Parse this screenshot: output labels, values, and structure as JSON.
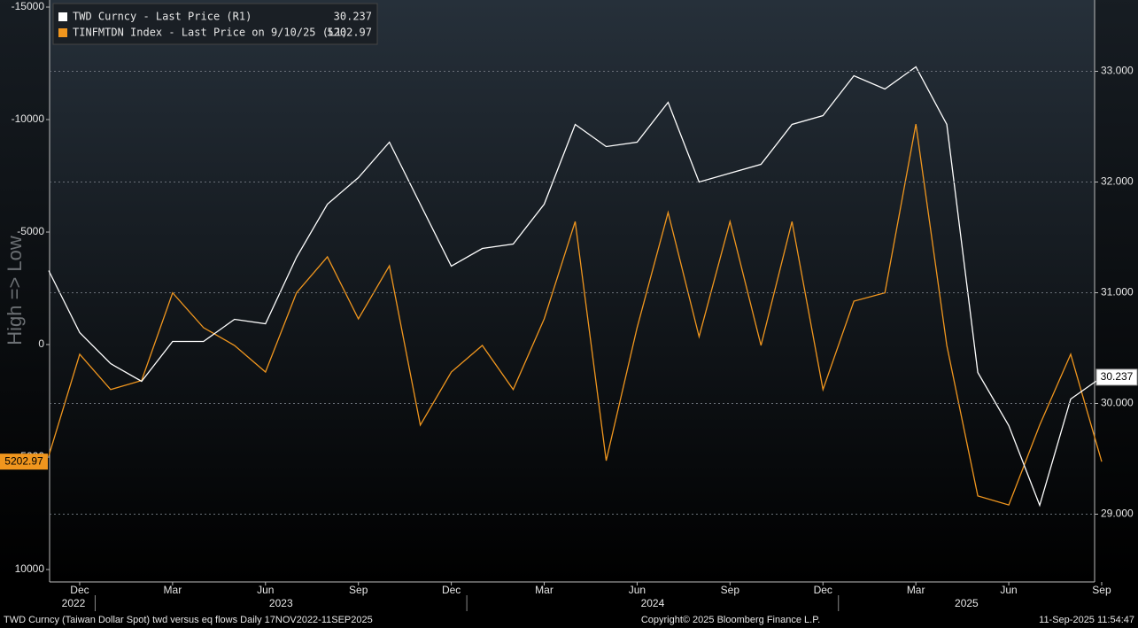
{
  "chart_data": {
    "type": "line",
    "axis_label": "High => Low",
    "footer_left": "TWD Curncy (Taiwan Dollar Spot) twd versus eq flows  Daily 17NOV2022-11SEP2025",
    "footer_center": "Copyright© 2025 Bloomberg Finance L.P.",
    "footer_right": "11-Sep-2025 11:54:47",
    "x": [
      "2022-11",
      "2022-12",
      "2023-01",
      "2023-02",
      "2023-03",
      "2023-04",
      "2023-05",
      "2023-06",
      "2023-07",
      "2023-08",
      "2023-09",
      "2023-10",
      "2023-11",
      "2023-12",
      "2024-01",
      "2024-02",
      "2024-03",
      "2024-04",
      "2024-05",
      "2024-06",
      "2024-07",
      "2024-08",
      "2024-09",
      "2024-10",
      "2024-11",
      "2024-12",
      "2025-01",
      "2025-02",
      "2025-03",
      "2025-04",
      "2025-05",
      "2025-06",
      "2025-07",
      "2025-08",
      "2025-09"
    ],
    "xticks": [
      {
        "value": "2022-12",
        "label": "Dec"
      },
      {
        "value": "2023-03",
        "label": "Mar"
      },
      {
        "value": "2023-06",
        "label": "Jun"
      },
      {
        "value": "2023-09",
        "label": "Sep"
      },
      {
        "value": "2023-12",
        "label": "Dec"
      },
      {
        "value": "2024-03",
        "label": "Mar"
      },
      {
        "value": "2024-06",
        "label": "Jun"
      },
      {
        "value": "2024-09",
        "label": "Sep"
      },
      {
        "value": "2024-12",
        "label": "Dec"
      },
      {
        "value": "2025-03",
        "label": "Mar"
      },
      {
        "value": "2025-06",
        "label": "Jun"
      },
      {
        "value": "2025-09",
        "label": "Sep"
      }
    ],
    "year_ticks": [
      "2022",
      "2023",
      "2024",
      "2025"
    ],
    "ylim": [
      10000,
      -15000
    ],
    "yticks": [
      -15000,
      -10000,
      -5000,
      0,
      5000,
      10000
    ],
    "y2lim": [
      28.5,
      33.58
    ],
    "y2ticks": [
      {
        "value": 29,
        "label": "29.000"
      },
      {
        "value": 30,
        "label": "30.000"
      },
      {
        "value": 31,
        "label": "31.000"
      },
      {
        "value": 32,
        "label": "32.000"
      },
      {
        "value": 33,
        "label": "33.000"
      }
    ],
    "grid": true,
    "legend": "top-left",
    "series": [
      {
        "name": "TWD Curncy - Last Price (R1)",
        "color": "#ffffff",
        "axis": "y2",
        "values": [
          31.2,
          30.64,
          30.36,
          30.2,
          30.56,
          30.56,
          30.76,
          30.72,
          31.32,
          31.8,
          32.04,
          32.36,
          31.8,
          31.24,
          31.4,
          31.44,
          31.8,
          32.52,
          32.32,
          32.36,
          32.72,
          32.0,
          32.08,
          32.16,
          32.52,
          32.6,
          32.96,
          32.84,
          33.04,
          32.52,
          30.28,
          29.8,
          29.08,
          30.04,
          30.237
        ]
      },
      {
        "name": "TINFMTDN Index - Last Price on 9/10/25 (L1)",
        "color": "#f0961e",
        "axis": "y",
        "values": [
          4960,
          430,
          2000,
          1600,
          -2300,
          -750,
          40,
          1220,
          -2300,
          -3900,
          -1140,
          -3500,
          3580,
          1220,
          40,
          2000,
          -1140,
          -5470,
          5160,
          -750,
          -5870,
          -350,
          -5470,
          40,
          -5470,
          2000,
          -1930,
          -2300,
          -9800,
          40,
          6730,
          7130,
          3580,
          430,
          5202.97
        ]
      }
    ]
  }
}
